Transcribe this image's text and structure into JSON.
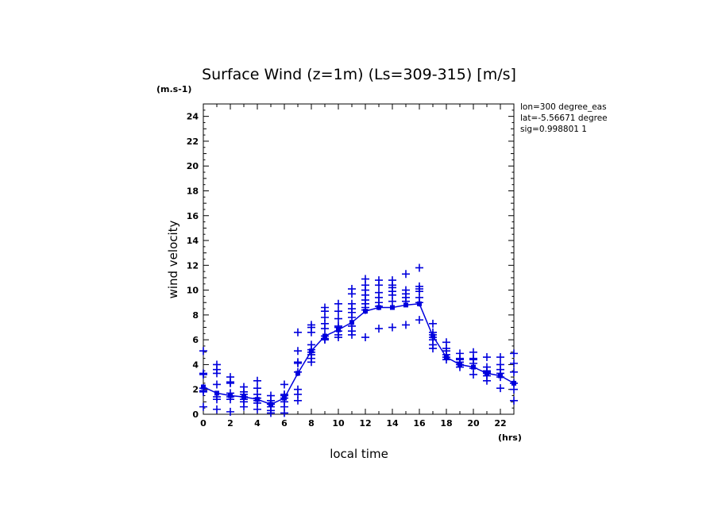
{
  "chart_data": {
    "type": "scatter",
    "title": "Surface Wind (z=1m) (Ls=309-315) [m/s]",
    "xlabel": "local time",
    "ylabel": "wind velocity",
    "x_unit": "(hrs)",
    "y_unit": "(m.s-1)",
    "xlim": [
      0,
      23
    ],
    "ylim": [
      0,
      25
    ],
    "x_ticks": [
      0,
      2,
      4,
      6,
      8,
      10,
      12,
      14,
      16,
      18,
      20,
      22
    ],
    "y_ticks": [
      0,
      2,
      4,
      6,
      8,
      10,
      12,
      14,
      16,
      18,
      20,
      22,
      24
    ],
    "grid": false,
    "annotations": [
      "lon=300 degree_eas",
      "lat=-5.56671 degree",
      "sig=0.998801 1"
    ],
    "color": "#0000dd",
    "samples": [
      {
        "x": 0,
        "y": [
          5.1,
          3.3,
          3.2,
          2.1,
          1.9,
          1.8,
          0.6
        ]
      },
      {
        "x": 1,
        "y": [
          4.0,
          3.6,
          3.3,
          2.4,
          1.4,
          1.2,
          0.4
        ]
      },
      {
        "x": 2,
        "y": [
          3.0,
          2.6,
          2.5,
          1.7,
          1.4,
          1.2,
          0.2
        ]
      },
      {
        "x": 3,
        "y": [
          2.2,
          1.8,
          1.6,
          1.4,
          1.2,
          1.0,
          0.6
        ]
      },
      {
        "x": 4,
        "y": [
          2.7,
          2.1,
          1.6,
          1.3,
          1.1,
          0.9,
          0.4
        ]
      },
      {
        "x": 5,
        "y": [
          1.5,
          1.1,
          0.9,
          0.8,
          0.6,
          0.3,
          0.1
        ]
      },
      {
        "x": 6,
        "y": [
          2.4,
          1.6,
          1.5,
          1.3,
          1.0,
          0.6,
          0.1
        ]
      },
      {
        "x": 7,
        "y": [
          6.6,
          5.1,
          4.2,
          4.1,
          3.4,
          2.0,
          1.6,
          1.1
        ]
      },
      {
        "x": 8,
        "y": [
          7.2,
          7.0,
          6.6,
          5.6,
          5.2,
          5.0,
          4.8,
          4.5,
          4.2
        ]
      },
      {
        "x": 9,
        "y": [
          8.6,
          8.3,
          7.8,
          7.3,
          6.9,
          6.3,
          6.1,
          6.0
        ]
      },
      {
        "x": 10,
        "y": [
          8.9,
          8.3,
          7.7,
          7.1,
          7.0,
          6.7,
          6.4,
          6.2
        ]
      },
      {
        "x": 11,
        "y": [
          10.1,
          9.7,
          8.9,
          8.5,
          8.2,
          7.8,
          7.1,
          6.7,
          6.4
        ]
      },
      {
        "x": 12,
        "y": [
          10.9,
          10.4,
          10.0,
          9.6,
          9.2,
          8.9,
          8.6,
          8.4,
          6.2
        ]
      },
      {
        "x": 13,
        "y": [
          10.8,
          10.4,
          9.8,
          9.4,
          9.0,
          8.7,
          6.9
        ]
      },
      {
        "x": 14,
        "y": [
          10.8,
          10.4,
          10.2,
          9.9,
          9.6,
          9.1,
          7.0
        ]
      },
      {
        "x": 15,
        "y": [
          11.3,
          10.0,
          9.7,
          9.4,
          9.1,
          7.2
        ]
      },
      {
        "x": 16,
        "y": [
          11.8,
          10.3,
          10.1,
          9.9,
          9.4,
          9.0,
          7.6
        ]
      },
      {
        "x": 17,
        "y": [
          7.3,
          6.6,
          6.4,
          6.2,
          6.0,
          5.6,
          5.3
        ]
      },
      {
        "x": 18,
        "y": [
          5.8,
          5.3,
          5.1,
          4.8,
          4.6,
          4.4
        ]
      },
      {
        "x": 19,
        "y": [
          4.9,
          4.5,
          4.4,
          4.2,
          4.0,
          3.8
        ]
      },
      {
        "x": 20,
        "y": [
          5.0,
          4.5,
          4.4,
          4.1,
          3.7,
          3.2
        ]
      },
      {
        "x": 21,
        "y": [
          4.6,
          3.8,
          3.5,
          3.4,
          3.3,
          3.1,
          2.7
        ]
      },
      {
        "x": 22,
        "y": [
          4.6,
          4.0,
          3.6,
          3.3,
          3.0,
          2.1
        ]
      },
      {
        "x": 23,
        "y": [
          4.9,
          4.1,
          3.4,
          2.5,
          2.0,
          1.1
        ]
      }
    ],
    "mean_line": {
      "x": [
        0,
        1,
        2,
        3,
        4,
        5,
        6,
        7,
        8,
        9,
        10,
        11,
        12,
        13,
        14,
        15,
        16,
        17,
        18,
        19,
        20,
        21,
        22,
        23
      ],
      "y": [
        2.2,
        1.7,
        1.5,
        1.4,
        1.2,
        0.8,
        1.3,
        3.3,
        5.1,
        6.3,
        6.8,
        7.4,
        8.3,
        8.6,
        8.6,
        8.8,
        8.9,
        6.3,
        4.6,
        4.0,
        3.8,
        3.3,
        3.1,
        2.5
      ]
    }
  }
}
